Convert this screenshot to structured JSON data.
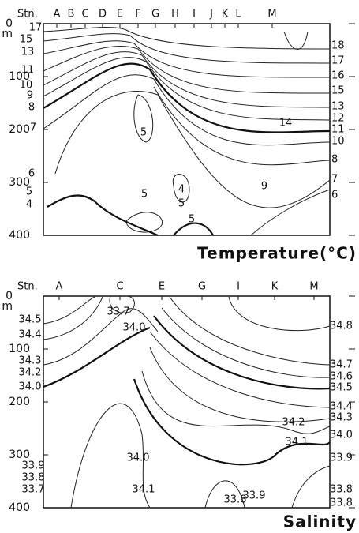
{
  "chart_data": [
    {
      "type": "contour",
      "title": "Temperature(°C)",
      "station_label": "Stn.",
      "ylabel": "m",
      "stations": [
        "A",
        "B",
        "C",
        "D",
        "E",
        "F",
        "G",
        "H",
        "I",
        "J",
        "K",
        "L",
        "M"
      ],
      "ylim": [
        0,
        400
      ],
      "yticks": [
        0,
        100,
        200,
        300,
        400
      ],
      "contour_labels": [
        "17",
        "15",
        "13",
        "11",
        "10",
        "9",
        "8",
        "7",
        "6",
        "5",
        "4",
        "5",
        "5",
        "4",
        "5",
        "5",
        "9",
        "14",
        "18",
        "17",
        "16",
        "15",
        "13",
        "12",
        "11",
        "10",
        "8",
        "7",
        "6"
      ]
    },
    {
      "type": "contour",
      "title": "Salinity",
      "station_label": "Stn.",
      "ylabel": "m",
      "stations": [
        "A",
        "C",
        "E",
        "G",
        "I",
        "K",
        "M"
      ],
      "ylim": [
        0,
        400
      ],
      "yticks": [
        0,
        100,
        200,
        300,
        400
      ],
      "contour_labels": [
        "34.5",
        "34.4",
        "34.3",
        "34.2",
        "34.0",
        "33.7",
        "34.0",
        "34.8",
        "34.7",
        "34.6",
        "34.5",
        "34.4",
        "34.3",
        "34.0",
        "34.2",
        "34.1",
        "33.9",
        "34.0",
        "33.9",
        "33.8",
        "33.7",
        "34.1",
        "33.8",
        "33.9",
        "33.8",
        "33.8"
      ]
    }
  ]
}
